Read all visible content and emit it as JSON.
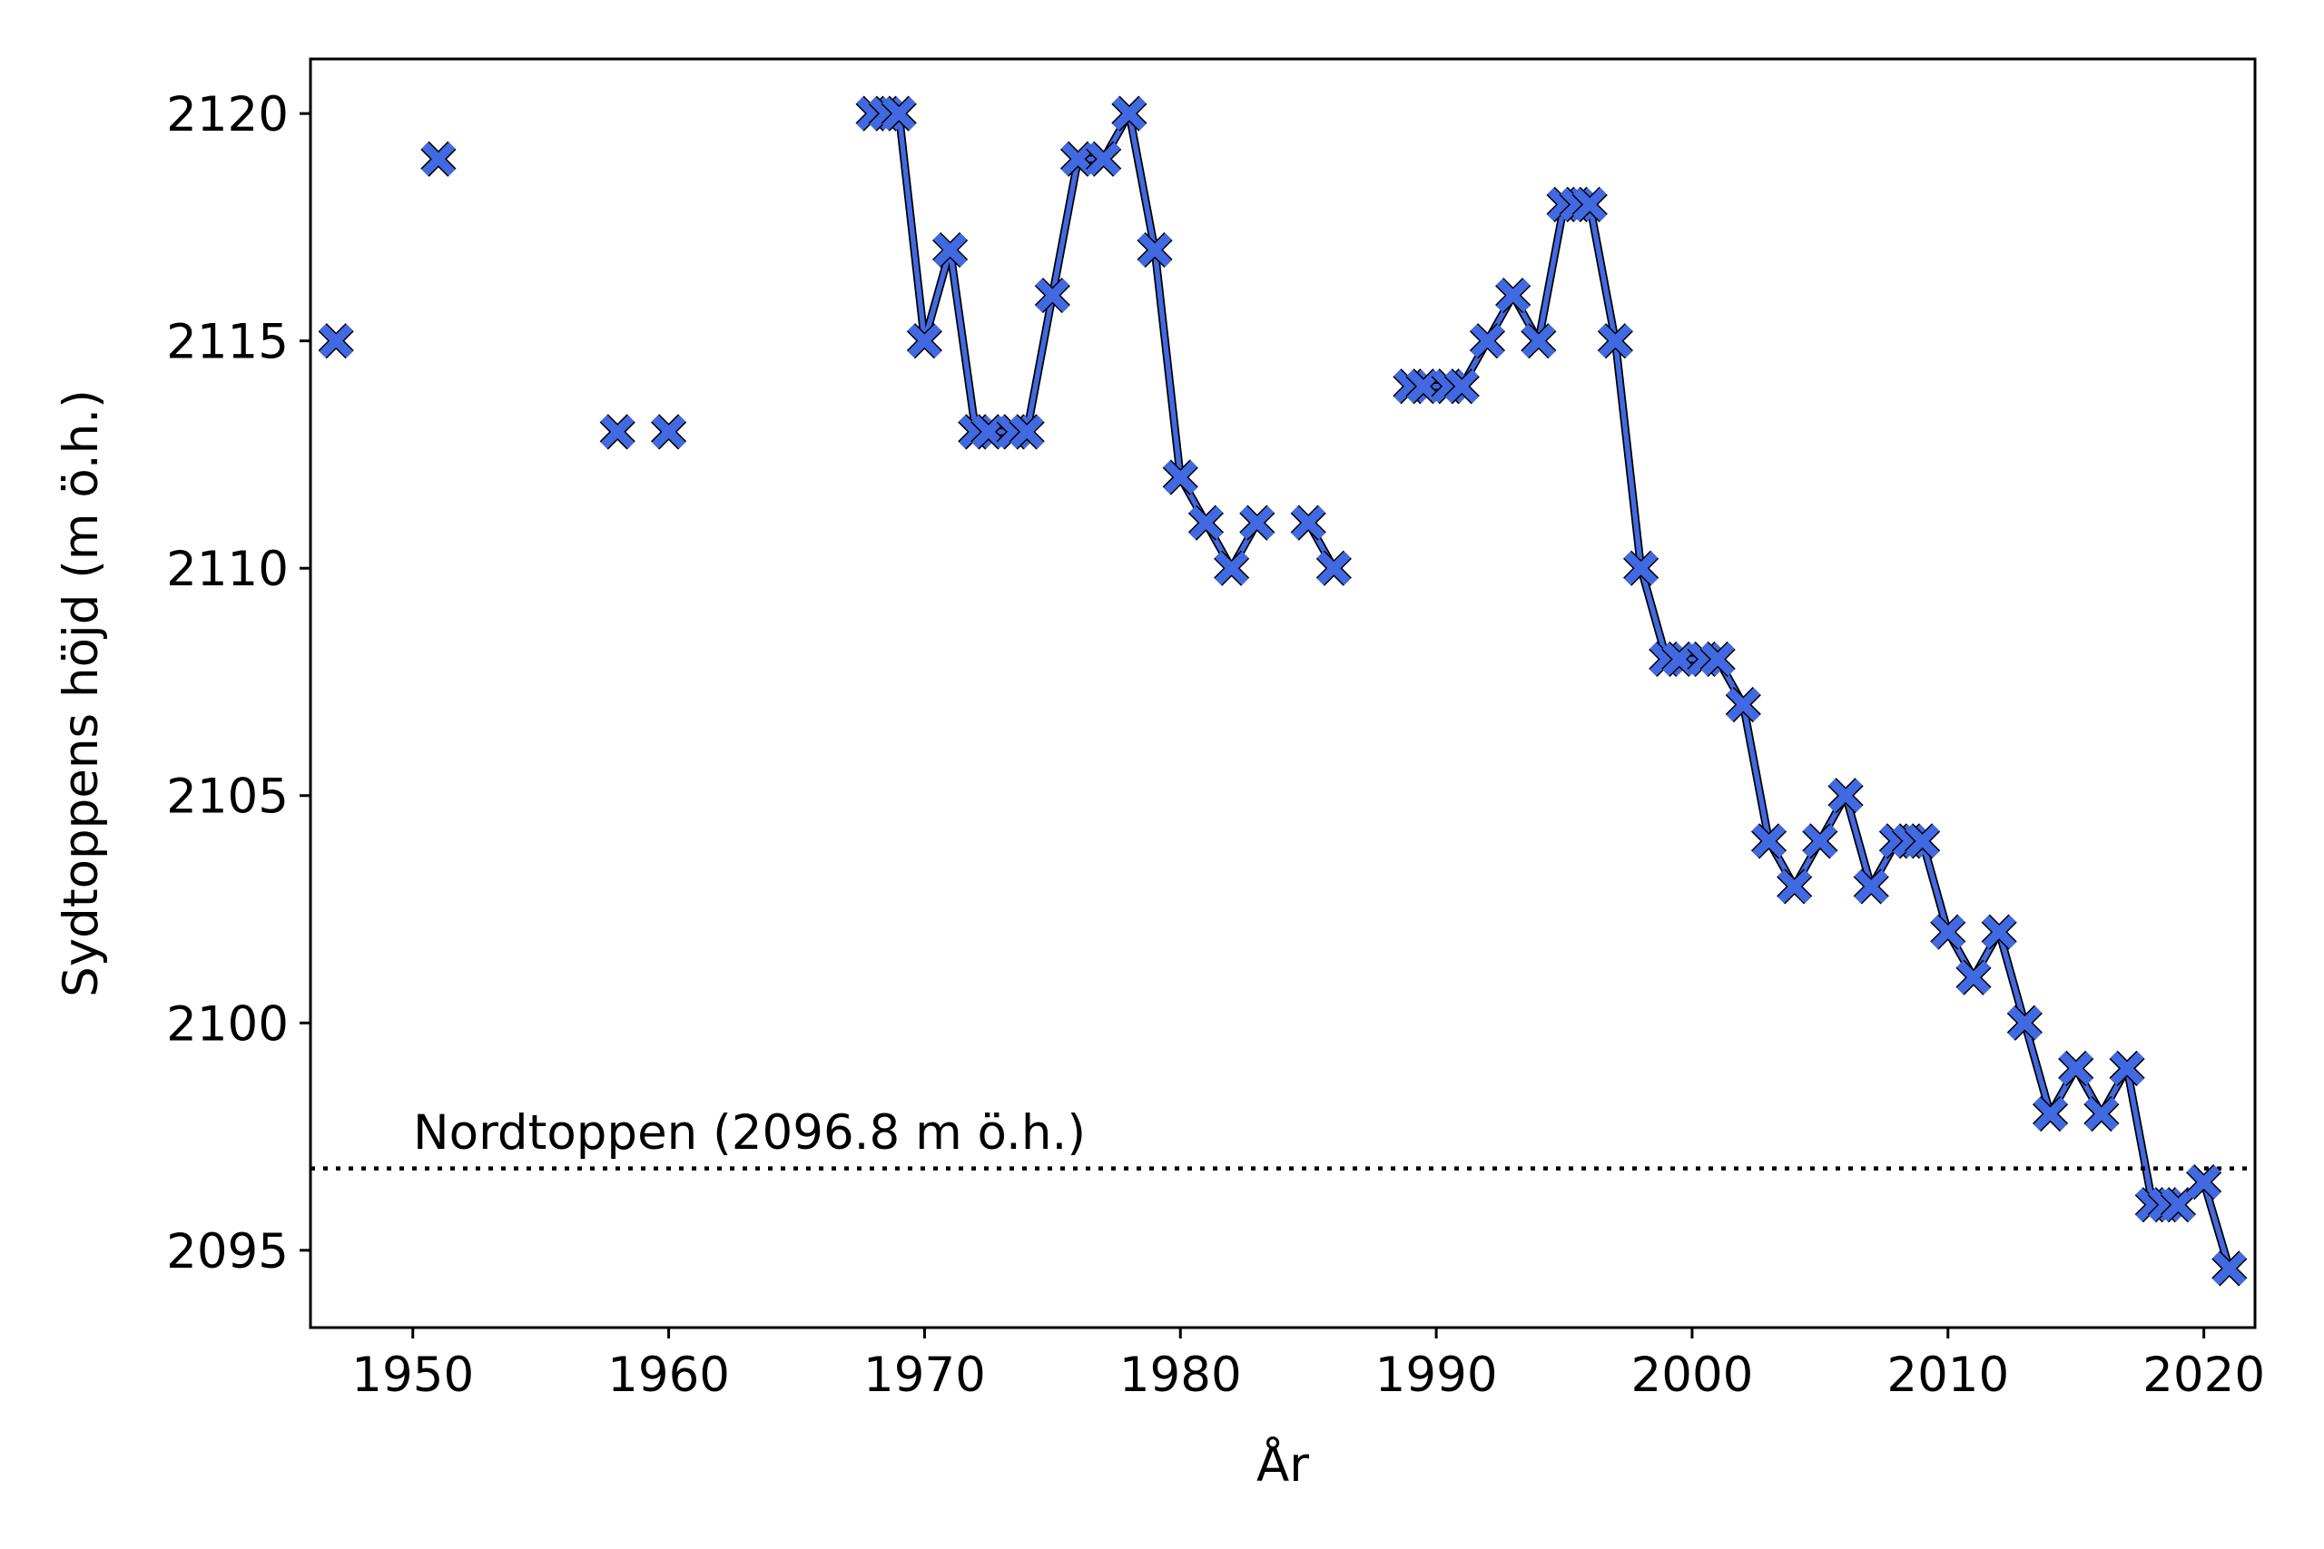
{
  "chart_data": {
    "type": "line",
    "title": "",
    "xlabel": "År",
    "ylabel": "Sydtoppens höjd (m ö.h.)",
    "xlim": [
      1946,
      2022
    ],
    "ylim": [
      2093.3,
      2121.2
    ],
    "xticks": [
      1950,
      1960,
      1970,
      1980,
      1990,
      2000,
      2010,
      2020
    ],
    "yticks": [
      2095,
      2100,
      2105,
      2110,
      2115,
      2120
    ],
    "grid": false,
    "legend": "none",
    "colors": {
      "series": "#4169e1",
      "edge": "#000000",
      "reference_line": "#000000"
    },
    "marker": "x-filled",
    "reference_line": {
      "y": 2096.8,
      "style": "dotted",
      "label": "Nordtoppen (2096.8 m ö.h.)"
    },
    "series": [
      {
        "segments": [
          [
            [
              1947,
              2115
            ]
          ],
          [
            [
              1951,
              2119
            ]
          ],
          [
            [
              1958,
              2113
            ]
          ],
          [
            [
              1960,
              2113
            ]
          ],
          [
            [
              1968,
              2120
            ],
            [
              1968.5,
              2120
            ],
            [
              1969,
              2120
            ],
            [
              1970,
              2115
            ],
            [
              1971,
              2117
            ],
            [
              1972,
              2113
            ],
            [
              1972.5,
              2113
            ],
            [
              1973.5,
              2113
            ],
            [
              1974,
              2113
            ],
            [
              1975,
              2116
            ],
            [
              1976,
              2119
            ],
            [
              1977,
              2119
            ],
            [
              1978,
              2120
            ],
            [
              1979,
              2117
            ],
            [
              1980,
              2112
            ],
            [
              1981,
              2111
            ],
            [
              1982,
              2110
            ],
            [
              1983,
              2111
            ]
          ],
          [
            [
              1985,
              2111
            ],
            [
              1986,
              2110
            ]
          ],
          [
            [
              1989,
              2114
            ],
            [
              1989.5,
              2114
            ],
            [
              1990.5,
              2114
            ],
            [
              1991,
              2114
            ],
            [
              1992,
              2115
            ],
            [
              1993,
              2116
            ],
            [
              1994,
              2115
            ],
            [
              1995,
              2118
            ],
            [
              1995.5,
              2118
            ],
            [
              1996,
              2118
            ],
            [
              1997,
              2115
            ],
            [
              1998,
              2110
            ],
            [
              1999,
              2108
            ],
            [
              1999.5,
              2108
            ],
            [
              2000.5,
              2108
            ],
            [
              2001,
              2108
            ],
            [
              2002,
              2107
            ],
            [
              2003,
              2104
            ],
            [
              2004,
              2103
            ],
            [
              2005,
              2104
            ],
            [
              2006,
              2105
            ],
            [
              2007,
              2103
            ],
            [
              2008,
              2104
            ],
            [
              2008.5,
              2104
            ],
            [
              2009,
              2104
            ],
            [
              2010,
              2102
            ],
            [
              2011,
              2101
            ],
            [
              2012,
              2102
            ],
            [
              2013,
              2100
            ],
            [
              2014,
              2098
            ],
            [
              2015,
              2099
            ],
            [
              2016,
              2098
            ],
            [
              2017,
              2099
            ],
            [
              2018,
              2096
            ],
            [
              2018.5,
              2096
            ],
            [
              2019,
              2096
            ],
            [
              2020,
              2096.5
            ],
            [
              2021,
              2094.6
            ]
          ]
        ]
      }
    ]
  }
}
